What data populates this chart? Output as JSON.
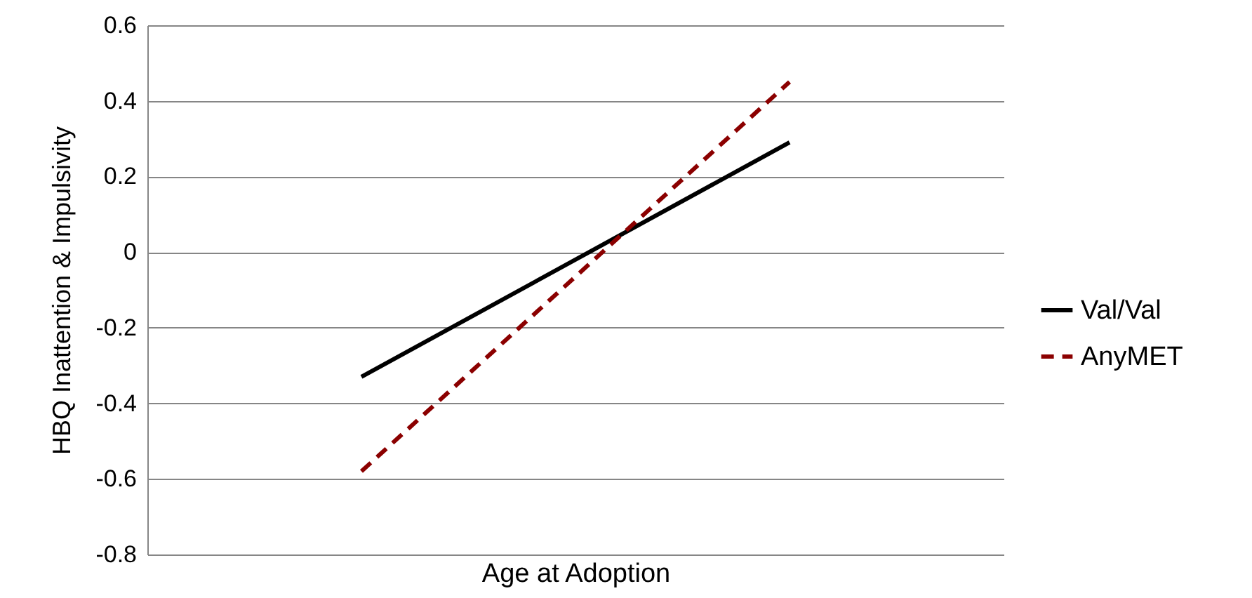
{
  "chart_data": {
    "type": "line",
    "xlabel": "Age at Adoption",
    "ylabel": "HBQ Inattention & Impulsivity",
    "categories": [
      null,
      null
    ],
    "series": [
      {
        "name": "Val/Val",
        "color": "#000000",
        "line_style": "solid",
        "values": [
          -0.33,
          0.29
        ]
      },
      {
        "name": "AnyMET",
        "color": "#8b0000",
        "line_style": "dashed",
        "values": [
          -0.58,
          0.45
        ]
      }
    ],
    "ylim": [
      -0.8,
      0.6
    ],
    "yticks": [
      -0.8,
      -0.6,
      -0.4,
      -0.2,
      0,
      0.2,
      0.4,
      0.6
    ],
    "grid": "y",
    "legend": "right",
    "tick_labels": "y",
    "marker": "none"
  }
}
